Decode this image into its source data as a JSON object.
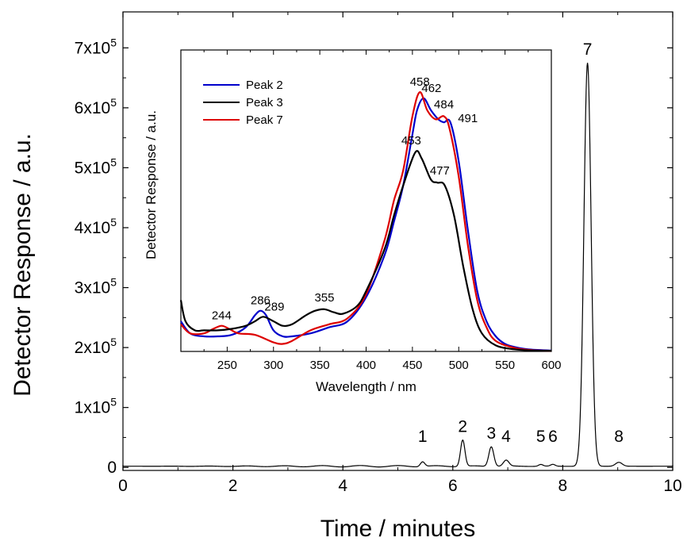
{
  "chart_data": [
    {
      "type": "line",
      "xlabel": "Time / minutes",
      "ylabel": "Detector Response / a.u.",
      "xlim": [
        0,
        10
      ],
      "ylim": [
        -5000,
        760000
      ],
      "x_ticks": [
        0,
        2,
        4,
        6,
        8,
        10
      ],
      "x_tick_labels": [
        "0",
        "2",
        "4",
        "6",
        "8",
        "10"
      ],
      "y_ticks": [
        0,
        100000,
        200000,
        300000,
        400000,
        500000,
        600000,
        700000
      ],
      "y_tick_labels": [
        {
          "base": "0",
          "exp": ""
        },
        {
          "base": "1x10",
          "exp": "5"
        },
        {
          "base": "2x10",
          "exp": "5"
        },
        {
          "base": "3x10",
          "exp": "5"
        },
        {
          "base": "4x10",
          "exp": "5"
        },
        {
          "base": "5x10",
          "exp": "5"
        },
        {
          "base": "6x10",
          "exp": "5"
        },
        {
          "base": "7x10",
          "exp": "5"
        }
      ],
      "grid": false,
      "series_color": "#000000",
      "baseline": 2000,
      "peaks": [
        {
          "label": "1",
          "time": 5.45,
          "height": 8000,
          "width": 0.04
        },
        {
          "label": "2",
          "time": 6.18,
          "height": 44000,
          "width": 0.04
        },
        {
          "label": "3",
          "time": 6.7,
          "height": 33000,
          "width": 0.045
        },
        {
          "label": "4",
          "time": 6.97,
          "height": 10000,
          "width": 0.05
        },
        {
          "label": "5",
          "time": 7.6,
          "height": 3000,
          "width": 0.04
        },
        {
          "label": "6",
          "time": 7.82,
          "height": 3000,
          "width": 0.04
        },
        {
          "label": "7",
          "time": 8.45,
          "height": 673000,
          "width": 0.065
        },
        {
          "label": "8",
          "time": 9.02,
          "height": 6500,
          "width": 0.06
        }
      ]
    },
    {
      "type": "line",
      "xlabel": "Wavelength / nm",
      "ylabel": "Detector Response / a.u.",
      "xlim": [
        200,
        600
      ],
      "ylim": [
        0,
        1
      ],
      "x_ticks": [
        250,
        300,
        350,
        400,
        450,
        500,
        550,
        600
      ],
      "x_tick_labels": [
        "250",
        "300",
        "350",
        "400",
        "450",
        "500",
        "550",
        "600"
      ],
      "legend_position": "top-left",
      "series": [
        {
          "name": "Peak 2",
          "color": "#0000cc",
          "x": [
            200,
            210,
            225,
            240,
            255,
            270,
            280,
            286,
            292,
            300,
            310,
            320,
            340,
            360,
            380,
            400,
            420,
            430,
            440,
            450,
            455,
            462,
            470,
            478,
            484,
            491,
            500,
            510,
            520,
            530,
            540,
            550,
            560,
            575,
            600
          ],
          "y": [
            0.1,
            0.06,
            0.05,
            0.05,
            0.055,
            0.08,
            0.12,
            0.135,
            0.12,
            0.07,
            0.05,
            0.05,
            0.06,
            0.08,
            0.1,
            0.18,
            0.32,
            0.43,
            0.55,
            0.72,
            0.8,
            0.84,
            0.8,
            0.77,
            0.76,
            0.76,
            0.63,
            0.4,
            0.2,
            0.1,
            0.05,
            0.025,
            0.015,
            0.007,
            0.003
          ]
        },
        {
          "name": "Peak 3",
          "color": "#000000",
          "x": [
            200,
            205,
            215,
            225,
            240,
            255,
            270,
            280,
            289,
            300,
            310,
            320,
            335,
            345,
            355,
            365,
            375,
            390,
            400,
            420,
            430,
            440,
            453,
            460,
            470,
            477,
            485,
            495,
            505,
            515,
            525,
            540,
            560,
            580,
            600
          ],
          "y": [
            0.17,
            0.1,
            0.07,
            0.07,
            0.07,
            0.075,
            0.085,
            0.1,
            0.115,
            0.1,
            0.085,
            0.09,
            0.12,
            0.135,
            0.14,
            0.13,
            0.125,
            0.15,
            0.2,
            0.34,
            0.45,
            0.55,
            0.66,
            0.64,
            0.57,
            0.56,
            0.55,
            0.45,
            0.28,
            0.14,
            0.06,
            0.02,
            0.007,
            0.003,
            0.002
          ]
        },
        {
          "name": "Peak 7",
          "color": "#dd0000",
          "x": [
            200,
            210,
            225,
            235,
            244,
            252,
            262,
            280,
            300,
            310,
            320,
            340,
            360,
            380,
            400,
            420,
            430,
            440,
            450,
            458,
            466,
            475,
            484,
            490,
            500,
            510,
            520,
            530,
            540,
            560,
            580,
            600
          ],
          "y": [
            0.09,
            0.06,
            0.06,
            0.075,
            0.085,
            0.075,
            0.06,
            0.055,
            0.03,
            0.025,
            0.035,
            0.07,
            0.09,
            0.11,
            0.19,
            0.37,
            0.5,
            0.6,
            0.78,
            0.86,
            0.8,
            0.77,
            0.78,
            0.74,
            0.58,
            0.35,
            0.17,
            0.08,
            0.035,
            0.012,
            0.004,
            0.002
          ]
        }
      ],
      "annotations": [
        {
          "text": "458",
          "color": "#dd0000",
          "at_x": 458
        },
        {
          "text": "462",
          "color": "#0000cc",
          "at_x": 462
        },
        {
          "text": "484",
          "color": "#dd0000",
          "at_x": 484
        },
        {
          "text": "491",
          "color": "#0000cc",
          "at_x": 491
        },
        {
          "text": "453",
          "color": "#000000",
          "at_x": 453
        },
        {
          "text": "477",
          "color": "#000000",
          "at_x": 477
        },
        {
          "text": "286",
          "color": "#0000cc",
          "at_x": 286
        },
        {
          "text": "289",
          "color": "#000000",
          "at_x": 289
        },
        {
          "text": "355",
          "color": "#000000",
          "at_x": 355
        },
        {
          "text": "244",
          "color": "#dd0000",
          "at_x": 244
        }
      ]
    }
  ]
}
